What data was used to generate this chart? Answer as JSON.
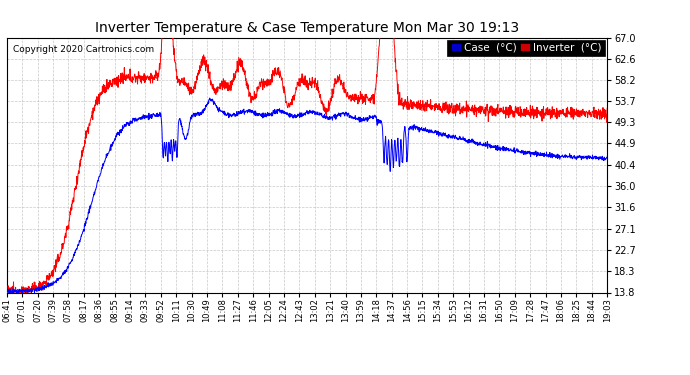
{
  "title": "Inverter Temperature & Case Temperature Mon Mar 30 19:13",
  "copyright": "Copyright 2020 Cartronics.com",
  "case_label": "Case  (°C)",
  "inverter_label": "Inverter  (°C)",
  "case_color": "#0000ff",
  "inverter_color": "#ff0000",
  "case_bg": "#0000cc",
  "inverter_bg": "#cc0000",
  "ylim": [
    13.8,
    67.0
  ],
  "yticks": [
    13.8,
    18.3,
    22.7,
    27.1,
    31.6,
    36.0,
    40.4,
    44.9,
    49.3,
    53.7,
    58.2,
    62.6,
    67.0
  ],
  "background_color": "#ffffff",
  "plot_bg": "#ffffff",
  "grid_color": "#bbbbbb",
  "xtick_labels": [
    "06:41",
    "07:01",
    "07:20",
    "07:39",
    "07:58",
    "08:17",
    "08:36",
    "08:55",
    "09:14",
    "09:33",
    "09:52",
    "10:11",
    "10:30",
    "10:49",
    "11:08",
    "11:27",
    "11:46",
    "12:05",
    "12:24",
    "12:43",
    "13:02",
    "13:21",
    "13:40",
    "13:59",
    "14:18",
    "14:37",
    "14:56",
    "15:15",
    "15:34",
    "15:53",
    "16:12",
    "16:31",
    "16:50",
    "17:09",
    "17:28",
    "17:47",
    "18:06",
    "18:25",
    "18:44",
    "19:03"
  ]
}
